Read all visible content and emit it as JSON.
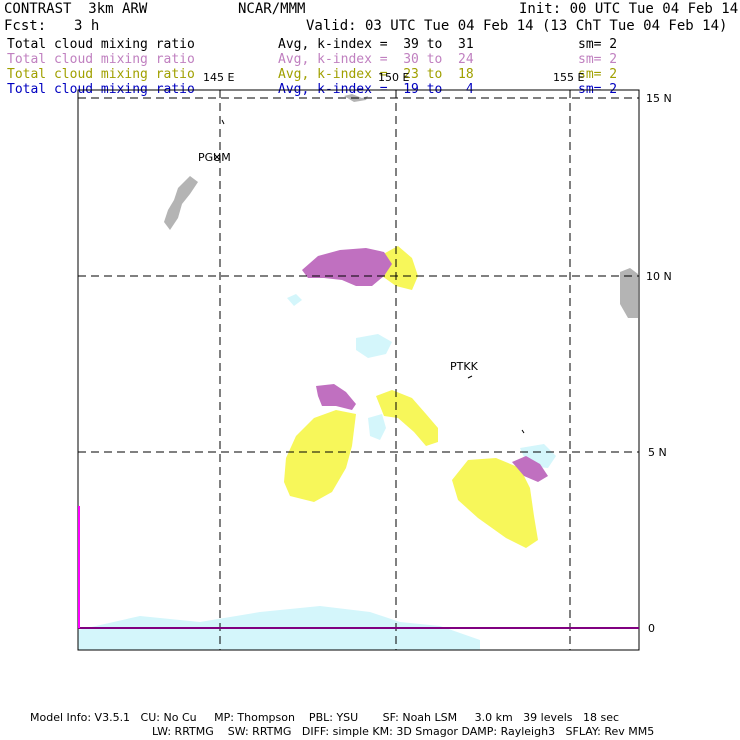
{
  "header": {
    "model": "CONTRAST  3km ARW",
    "center": "NCAR/MMM",
    "init": "Init: 00 UTC Tue 04 Feb 14",
    "fcst_label": "Fcst:",
    "fcst_value": "3 h",
    "valid": "Valid: 03 UTC Tue 04 Feb 14 (13 ChT Tue 04 Feb 14)"
  },
  "legend": [
    {
      "field": "Total cloud mixing ratio",
      "range": "Avg, k-index =  39 to  31",
      "sm": "sm= 2",
      "color": "#000000"
    },
    {
      "field": "Total cloud mixing ratio",
      "range": "Avg, k-index =  30 to  24",
      "sm": "sm= 2",
      "color": "#c080c0"
    },
    {
      "field": "Total cloud mixing ratio",
      "range": "Avg, k-index =  23 to  18",
      "sm": "sm= 2",
      "color": "#a0a000"
    },
    {
      "field": "Total cloud mixing ratio",
      "range": "Avg, k-index =  19 to   4",
      "sm": "sm= 2",
      "color": "#0000c0"
    }
  ],
  "map": {
    "lon_labels": [
      "145 E",
      "150 E",
      "155 E"
    ],
    "lat_labels": [
      "15 N",
      "10 N",
      "5 N",
      "0"
    ],
    "stations": [
      "PGUM",
      "PTKK"
    ],
    "colors": {
      "land": "#b4b4b4",
      "high_cloud": "#c070c0",
      "mid_cloud": "#f7f75a",
      "low_cloud": "#d4f6fb",
      "equator_line": "#ff00ff",
      "grid": "#000000"
    }
  },
  "footer": {
    "line1": "Model Info: V3.5.1   CU: No Cu     MP: Thompson    PBL: YSU       SF: Noah LSM     3.0 km   39 levels   18 sec",
    "line2": "LW: RRTMG    SW: RRTMG   DIFF: simple KM: 3D Smagor DAMP: Rayleigh3   SFLAY: Rev MM5"
  }
}
